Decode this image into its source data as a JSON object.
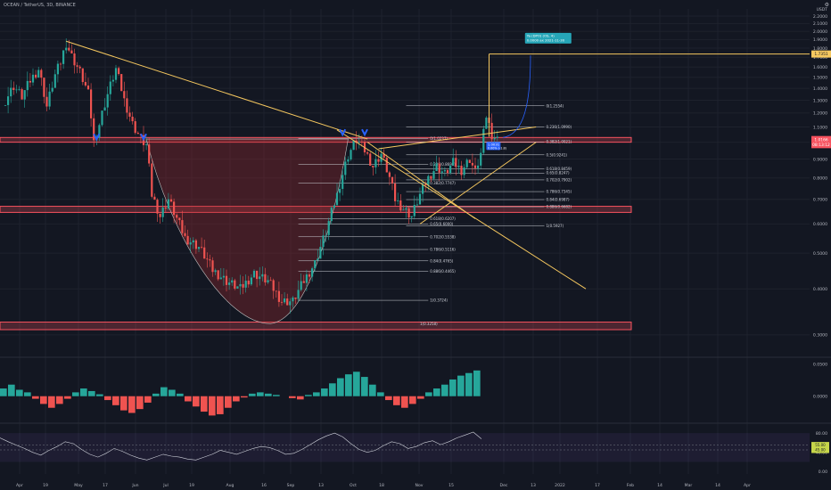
{
  "header": {
    "symbol_line": "OCEAN / TetherUS, 3D, BINANCE",
    "currency": "USDT"
  },
  "toolbar": {
    "settings_icon": "gear-icon"
  },
  "colors": {
    "background": "#131722",
    "up": "#26a69a",
    "down": "#ef5350",
    "trendline": "#f6c85f",
    "zone": "#f7525f",
    "blue_marker": "#2962ff",
    "target_box": "#26a6b8"
  },
  "chart_data": [
    {
      "type": "candlestick",
      "title": "",
      "symbol": "OCEAN / TetherUS",
      "interval": "3D",
      "exchange": "BINANCE",
      "y_scale": "log",
      "ylim": [
        0.29,
        2.3
      ],
      "x_ticks": [
        "Apr",
        "19",
        "May",
        "17",
        "Jun",
        "Jul",
        "19",
        "Aug",
        "16",
        "Sep",
        "13",
        "Oct",
        "18",
        "Nov",
        "15",
        "Dec",
        "13",
        "2022",
        "17",
        "Feb",
        "14",
        "Mar",
        "14",
        "Apr"
      ],
      "y_ticks": [
        "2.2000",
        "2.1000",
        "2.0000",
        "1.9000",
        "1.8000",
        "1.7000",
        "1.6000",
        "1.5000",
        "1.4000",
        "1.3000",
        "1.2000",
        "1.1000",
        "1.0000",
        "0.9000",
        "0.8000",
        "0.7000",
        "0.6000",
        "0.5000",
        "0.4000",
        "0.3000"
      ],
      "price_labels": [
        {
          "text": "1.7351",
          "value": 1.7351,
          "kind": "target"
        },
        {
          "text": "1.0166",
          "value": 1.0166,
          "kind": "last"
        },
        {
          "text": "08:13:12",
          "value": 0.985,
          "kind": "countdown"
        }
      ],
      "close_series": [
        {
          "bar": 0,
          "close": 1.3
        },
        {
          "bar": 3,
          "close": 1.42
        },
        {
          "bar": 6,
          "close": 1.33
        },
        {
          "bar": 9,
          "close": 1.47
        },
        {
          "bar": 12,
          "close": 1.58
        },
        {
          "bar": 15,
          "close": 1.25
        },
        {
          "bar": 18,
          "close": 1.52
        },
        {
          "bar": 20,
          "close": 1.65
        },
        {
          "bar": 22,
          "close": 1.86
        },
        {
          "bar": 24,
          "close": 1.71
        },
        {
          "bar": 27,
          "close": 1.55
        },
        {
          "bar": 30,
          "close": 1.35
        },
        {
          "bar": 32,
          "close": 1.0
        },
        {
          "bar": 34,
          "close": 1.12
        },
        {
          "bar": 37,
          "close": 1.35
        },
        {
          "bar": 40,
          "close": 1.58
        },
        {
          "bar": 43,
          "close": 1.3
        },
        {
          "bar": 46,
          "close": 1.12
        },
        {
          "bar": 49,
          "close": 1.02
        },
        {
          "bar": 51,
          "close": 0.98
        },
        {
          "bar": 53,
          "close": 0.72
        },
        {
          "bar": 56,
          "close": 0.63
        },
        {
          "bar": 59,
          "close": 0.7
        },
        {
          "bar": 62,
          "close": 0.62
        },
        {
          "bar": 65,
          "close": 0.55
        },
        {
          "bar": 70,
          "close": 0.52
        },
        {
          "bar": 75,
          "close": 0.45
        },
        {
          "bar": 80,
          "close": 0.42
        },
        {
          "bar": 85,
          "close": 0.4
        },
        {
          "bar": 90,
          "close": 0.44
        },
        {
          "bar": 95,
          "close": 0.42
        },
        {
          "bar": 100,
          "close": 0.37
        },
        {
          "bar": 104,
          "close": 0.37
        },
        {
          "bar": 108,
          "close": 0.42
        },
        {
          "bar": 112,
          "close": 0.47
        },
        {
          "bar": 116,
          "close": 0.57
        },
        {
          "bar": 120,
          "close": 0.72
        },
        {
          "bar": 124,
          "close": 0.92
        },
        {
          "bar": 127,
          "close": 1.02
        },
        {
          "bar": 130,
          "close": 0.95
        },
        {
          "bar": 133,
          "close": 0.86
        },
        {
          "bar": 136,
          "close": 0.93
        },
        {
          "bar": 139,
          "close": 0.8
        },
        {
          "bar": 141,
          "close": 0.7
        },
        {
          "bar": 144,
          "close": 0.66
        },
        {
          "bar": 147,
          "close": 0.63
        },
        {
          "bar": 150,
          "close": 0.72
        },
        {
          "bar": 153,
          "close": 0.8
        },
        {
          "bar": 156,
          "close": 0.86
        },
        {
          "bar": 159,
          "close": 0.82
        },
        {
          "bar": 162,
          "close": 0.88
        },
        {
          "bar": 165,
          "close": 0.84
        },
        {
          "bar": 168,
          "close": 0.9
        },
        {
          "bar": 170,
          "close": 0.83
        },
        {
          "bar": 172,
          "close": 0.93
        },
        {
          "bar": 174,
          "close": 1.18
        },
        {
          "bar": 176,
          "close": 1.05
        },
        {
          "bar": 178,
          "close": 1.0166
        }
      ],
      "fib_retracement_right": [
        {
          "text": "0(1.2554)",
          "value": 1.2554
        },
        {
          "text": "0.236(1.0990)",
          "value": 1.099
        },
        {
          "text": "0.382(1.0021)",
          "value": 1.0021
        },
        {
          "text": "0.5(0.9241)",
          "value": 0.9241
        },
        {
          "text": "0.618(0.8459)",
          "value": 0.8459
        },
        {
          "text": "0.65(0.8247)",
          "value": 0.8247
        },
        {
          "text": "0.702(0.7902)",
          "value": 0.7902
        },
        {
          "text": "0.786(0.7345)",
          "value": 0.7345
        },
        {
          "text": "0.84(0.6987)",
          "value": 0.6987
        },
        {
          "text": "0.886(0.6682)",
          "value": 0.6682
        },
        {
          "text": "1(0.5927)",
          "value": 0.5927
        }
      ],
      "fib_retracement_left": [
        {
          "text": "0(1.0237)",
          "value": 1.0237
        },
        {
          "text": "0.236(0.8698)",
          "value": 0.8698
        },
        {
          "text": "0.382(0.7747)",
          "value": 0.7747
        },
        {
          "text": "0.618(0.6207)",
          "value": 0.6207
        },
        {
          "text": "0.65(0.6000)",
          "value": 0.6
        },
        {
          "text": "0.702(0.5538)",
          "value": 0.5538
        },
        {
          "text": "0.786(0.5116)",
          "value": 0.5116
        },
        {
          "text": "0.84(0.4765)",
          "value": 0.4765
        },
        {
          "text": "0.886(0.4465)",
          "value": 0.4465
        },
        {
          "text": "1(0.3724)",
          "value": 0.3724
        }
      ],
      "horizontal_zones": [
        {
          "name": "resistance",
          "from": 1.0,
          "to": 1.03
        },
        {
          "name": "support",
          "from": 0.645,
          "to": 0.67
        },
        {
          "name": "base",
          "from": 0.31,
          "to": 0.325
        }
      ],
      "projection_box": {
        "line1": "Ya (DPO) (OS, 4)",
        "line2": "0.0000 ax 2021-11-30"
      },
      "current_price_box": {
        "line1": "1.0031",
        "line2": "0.00% (-1.8)"
      },
      "level_label": "1(0.3258)"
    },
    {
      "type": "bar",
      "title": "",
      "series": "MACD histogram",
      "ylim": [
        -0.035,
        0.055
      ],
      "y_ticks": [
        "0.0500",
        "0.0000"
      ],
      "values": [
        0.012,
        0.018,
        0.01,
        0.006,
        -0.004,
        -0.012,
        -0.018,
        -0.012,
        -0.004,
        0.006,
        0.012,
        0.008,
        0.003,
        -0.006,
        -0.014,
        -0.022,
        -0.026,
        -0.02,
        -0.01,
        0.004,
        0.014,
        0.01,
        0.004,
        -0.008,
        -0.016,
        -0.024,
        -0.03,
        -0.028,
        -0.018,
        -0.008,
        -0.002,
        0.004,
        0.006,
        0.004,
        0.002,
        0.0,
        -0.003,
        -0.005,
        0.002,
        0.006,
        0.012,
        0.02,
        0.028,
        0.034,
        0.038,
        0.03,
        0.018,
        0.006,
        -0.006,
        -0.014,
        -0.018,
        -0.012,
        -0.004,
        0.006,
        0.012,
        0.018,
        0.026,
        0.032,
        0.036,
        0.04
      ]
    },
    {
      "type": "line",
      "title": "",
      "series": "RSI",
      "ylim": [
        -5,
        95
      ],
      "y_ticks": [
        "80.00",
        "40.00",
        "0.00"
      ],
      "level_labels": [
        "55.00",
        "45.00"
      ],
      "values": [
        70,
        62,
        55,
        48,
        40,
        34,
        44,
        52,
        62,
        58,
        46,
        36,
        30,
        38,
        48,
        42,
        34,
        28,
        24,
        30,
        36,
        32,
        30,
        26,
        24,
        30,
        36,
        44,
        40,
        36,
        42,
        48,
        52,
        50,
        44,
        36,
        38,
        46,
        56,
        66,
        74,
        80,
        72,
        58,
        46,
        40,
        44,
        54,
        62,
        58,
        48,
        52,
        60,
        64,
        56,
        62,
        70,
        76,
        82,
        68
      ]
    }
  ]
}
